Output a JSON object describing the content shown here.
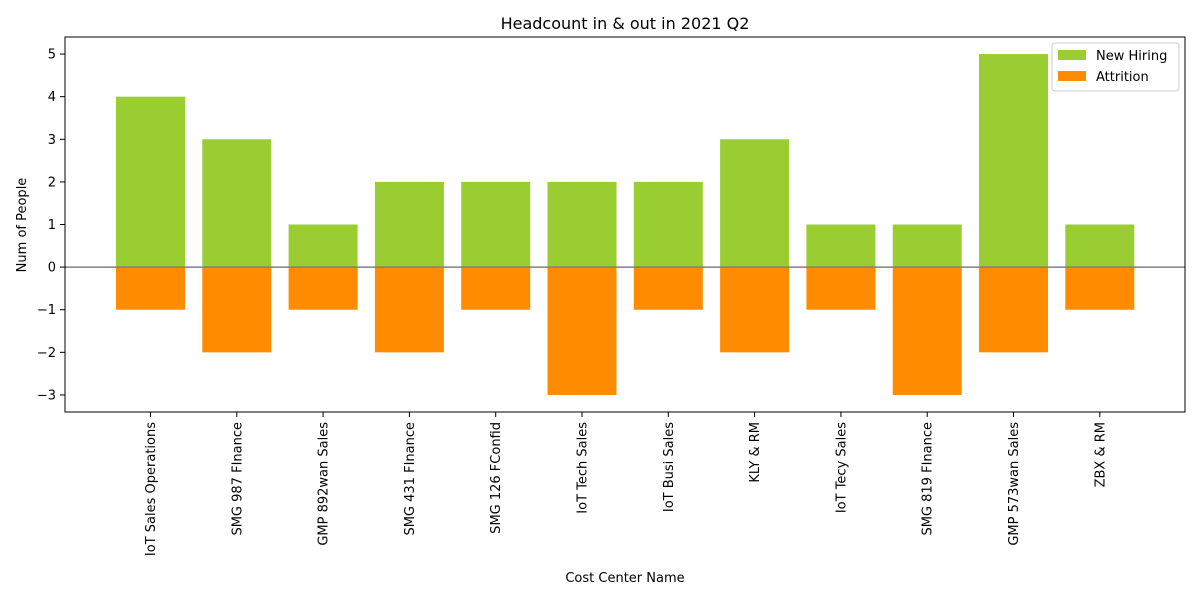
{
  "chart_data": {
    "type": "bar",
    "title": "Headcount in & out in 2021 Q2",
    "xlabel": "Cost Center Name",
    "ylabel": "Num of People",
    "categories": [
      "IoT Sales Operations",
      "SMG 987 FInance",
      "GMP 892wan Sales",
      "SMG 431 FInance",
      "SMG 126 FConfid",
      "IoT Tech Sales",
      "IoT Busi Sales",
      "KLY & RM",
      "IoT Tecy Sales",
      "SMG 819 FInance",
      "GMP 573wan Sales",
      "ZBX & RM"
    ],
    "series": [
      {
        "name": "New Hiring",
        "values": [
          4,
          3,
          1,
          2,
          2,
          2,
          2,
          3,
          1,
          1,
          5,
          1
        ],
        "color": "#9acd32"
      },
      {
        "name": "Attrition",
        "values": [
          -1,
          -2,
          -1,
          -2,
          -1,
          -3,
          -1,
          -2,
          -1,
          -3,
          -2,
          -1
        ],
        "color": "#ff8c00"
      }
    ],
    "ylim": [
      -3.4,
      5.4
    ],
    "yticks": [
      "5",
      "4",
      "3",
      "2",
      "1",
      "0",
      "−1",
      "−2",
      "−3"
    ],
    "ytick_values": [
      5,
      4,
      3,
      2,
      1,
      0,
      -1,
      -2,
      -3
    ],
    "zero_line_color": "#808080",
    "grid": false,
    "legend_position": "top-right"
  }
}
